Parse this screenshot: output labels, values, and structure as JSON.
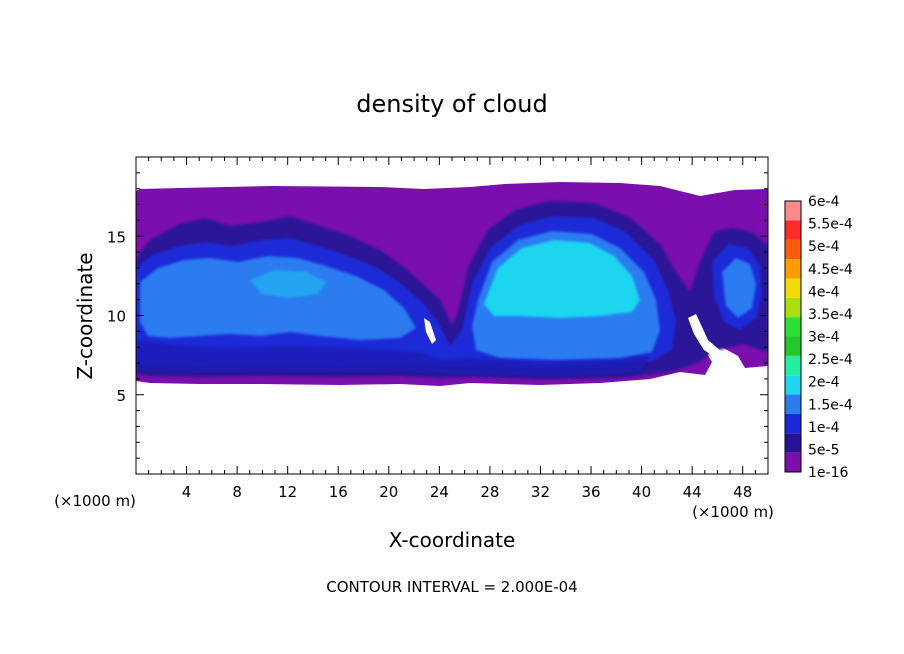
{
  "chart_data": {
    "type": "heatmap",
    "title": "density of cloud",
    "xlabel": "X-coordinate",
    "ylabel": "Z-coordinate",
    "x_unit": "(×1000 m)",
    "z_unit": "(×1000 m)",
    "footer": "CONTOUR INTERVAL = 2.000E-04",
    "xlim": [
      0,
      50
    ],
    "ylim": [
      0,
      20
    ],
    "x_ticks": [
      4,
      8,
      12,
      16,
      20,
      24,
      28,
      32,
      36,
      40,
      44,
      48
    ],
    "y_ticks": [
      5,
      10,
      15
    ],
    "colorbar": {
      "labels": [
        "1e-16",
        "5e-5",
        "1e-4",
        "1.5e-4",
        "2e-4",
        "2.5e-4",
        "3e-4",
        "3.5e-4",
        "4e-4",
        "4.5e-4",
        "5e-4",
        "5.5e-4",
        "6e-4"
      ],
      "colors": [
        "#7a0fae",
        "#2a1296",
        "#1a2ad8",
        "#2c7cf0",
        "#1fd6f0",
        "#23eea0",
        "#25c72e",
        "#2ae033",
        "#aadf0f",
        "#f3dd00",
        "#ff9d00",
        "#ff5a10",
        "#ff2a2a",
        "#ff8a8a"
      ]
    },
    "cloud_features": {
      "anvil_top_z": 18,
      "cloud_base_z": 5.8,
      "main_core_center_x": 32,
      "main_core_top_z": 16.5,
      "max_density_level": "1.5e-4 to 2e-4"
    }
  }
}
